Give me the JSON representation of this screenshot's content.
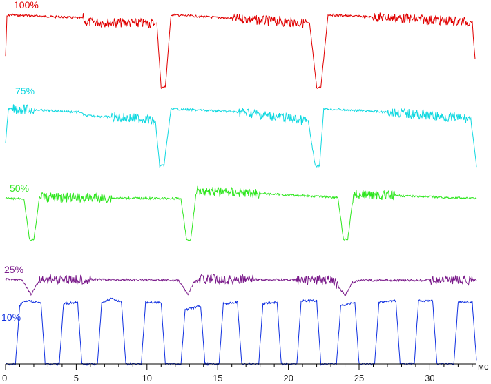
{
  "chart_data": {
    "type": "line",
    "title": "",
    "xlabel": "мс",
    "ylabel": "",
    "xlim": [
      0,
      33.3
    ],
    "x_ticks": [
      0,
      5,
      10,
      15,
      20,
      25,
      30
    ],
    "x_tick_labels": [
      "0",
      "5",
      "10",
      "15",
      "20",
      "25",
      "30"
    ],
    "grid": false,
    "legend": "none",
    "series": [
      {
        "name": "100%",
        "color": "#e00000",
        "points": [
          [
            0,
            0.45
          ],
          [
            0.1,
            0.95
          ],
          [
            0.3,
            0.97
          ],
          [
            5.5,
            0.93
          ],
          [
            5.6,
            0.88
          ],
          [
            10.7,
            0.86
          ],
          [
            11.0,
            0.05
          ],
          [
            11.3,
            0.06
          ],
          [
            11.7,
            0.97
          ],
          [
            16.5,
            0.92
          ],
          [
            21.5,
            0.86
          ],
          [
            22.0,
            0.05
          ],
          [
            22.3,
            0.06
          ],
          [
            22.8,
            0.97
          ],
          [
            33.0,
            0.88
          ],
          [
            33.2,
            0.4
          ]
        ],
        "noisy_ranges": [
          [
            5.5,
            10.5
          ],
          [
            16.0,
            21.3
          ],
          [
            26.0,
            32.8
          ]
        ]
      },
      {
        "name": "75%",
        "color": "#10d8e0",
        "points": [
          [
            0,
            0.4
          ],
          [
            0.2,
            0.9
          ],
          [
            5.3,
            0.85
          ],
          [
            5.6,
            0.8
          ],
          [
            10.0,
            0.75
          ],
          [
            10.6,
            0.7
          ],
          [
            10.9,
            0.05
          ],
          [
            11.2,
            0.06
          ],
          [
            11.7,
            0.9
          ],
          [
            16.8,
            0.85
          ],
          [
            21.4,
            0.72
          ],
          [
            21.9,
            0.05
          ],
          [
            22.2,
            0.06
          ],
          [
            22.5,
            0.9
          ],
          [
            27.2,
            0.85
          ],
          [
            32.9,
            0.75
          ],
          [
            33.3,
            0.05
          ]
        ],
        "noisy_ranges": [
          [
            0.5,
            2.0
          ],
          [
            7.5,
            10.5
          ],
          [
            16.5,
            21.3
          ],
          [
            27.0,
            32.8
          ]
        ]
      },
      {
        "name": "50%",
        "color": "#2ee61e",
        "points": [
          [
            0,
            0.8
          ],
          [
            1.3,
            0.8
          ],
          [
            1.7,
            0.05
          ],
          [
            2.0,
            0.05
          ],
          [
            2.4,
            0.82
          ],
          [
            12.4,
            0.8
          ],
          [
            12.8,
            0.05
          ],
          [
            13.1,
            0.06
          ],
          [
            13.5,
            0.95
          ],
          [
            23.5,
            0.82
          ],
          [
            23.9,
            0.05
          ],
          [
            24.2,
            0.06
          ],
          [
            24.6,
            0.88
          ],
          [
            33.3,
            0.8
          ]
        ],
        "noisy_ranges": [
          [
            2.5,
            7.5
          ],
          [
            13.5,
            18.0
          ],
          [
            24.5,
            27.5
          ]
        ]
      },
      {
        "name": "25%",
        "color": "#7a1a8a",
        "points": [
          [
            0,
            0.95
          ],
          [
            1.2,
            0.92
          ],
          [
            1.8,
            0.55
          ],
          [
            2.2,
            0.8
          ],
          [
            2.5,
            0.95
          ],
          [
            12.2,
            0.92
          ],
          [
            12.9,
            0.56
          ],
          [
            13.3,
            0.85
          ],
          [
            13.7,
            0.95
          ],
          [
            23.2,
            0.92
          ],
          [
            24.0,
            0.52
          ],
          [
            24.5,
            0.85
          ],
          [
            25.0,
            0.92
          ],
          [
            33.3,
            0.92
          ]
        ],
        "noisy_ranges": [
          [
            2.3,
            6.0
          ],
          [
            13.5,
            17.5
          ],
          [
            20.5,
            23.5
          ],
          [
            30.0,
            33.0
          ]
        ]
      },
      {
        "name": "10%",
        "color": "#1030e0",
        "points": [
          [
            0,
            0.0
          ],
          [
            0.7,
            0.0
          ],
          [
            1.0,
            0.75
          ],
          [
            1.3,
            0.82
          ],
          [
            2.5,
            0.8
          ],
          [
            2.8,
            0.0
          ],
          [
            3.8,
            0.0
          ],
          [
            4.1,
            0.78
          ],
          [
            5.1,
            0.8
          ],
          [
            5.4,
            0.0
          ],
          [
            6.5,
            0.0
          ],
          [
            6.8,
            0.8
          ],
          [
            7.5,
            0.85
          ],
          [
            8.2,
            0.8
          ],
          [
            8.5,
            0.0
          ],
          [
            9.6,
            0.0
          ],
          [
            9.9,
            0.8
          ],
          [
            11.0,
            0.8
          ],
          [
            11.3,
            0.0
          ],
          [
            12.4,
            0.0
          ],
          [
            12.7,
            0.7
          ],
          [
            13.8,
            0.75
          ],
          [
            14.1,
            0.0
          ],
          [
            15.1,
            0.0
          ],
          [
            15.4,
            0.78
          ],
          [
            16.4,
            0.8
          ],
          [
            16.7,
            0.0
          ],
          [
            17.9,
            0.0
          ],
          [
            18.2,
            0.78
          ],
          [
            19.2,
            0.8
          ],
          [
            19.5,
            0.0
          ],
          [
            20.6,
            0.0
          ],
          [
            20.9,
            0.82
          ],
          [
            22.0,
            0.82
          ],
          [
            22.3,
            0.0
          ],
          [
            23.4,
            0.0
          ],
          [
            23.7,
            0.75
          ],
          [
            24.7,
            0.8
          ],
          [
            25.0,
            0.0
          ],
          [
            26.1,
            0.0
          ],
          [
            26.4,
            0.8
          ],
          [
            27.6,
            0.82
          ],
          [
            27.9,
            0.0
          ],
          [
            28.9,
            0.0
          ],
          [
            29.2,
            0.82
          ],
          [
            30.2,
            0.82
          ],
          [
            30.5,
            0.0
          ],
          [
            31.7,
            0.0
          ],
          [
            32.0,
            0.8
          ],
          [
            33.0,
            0.8
          ],
          [
            33.3,
            0.05
          ]
        ],
        "noisy_ranges": []
      }
    ]
  }
}
